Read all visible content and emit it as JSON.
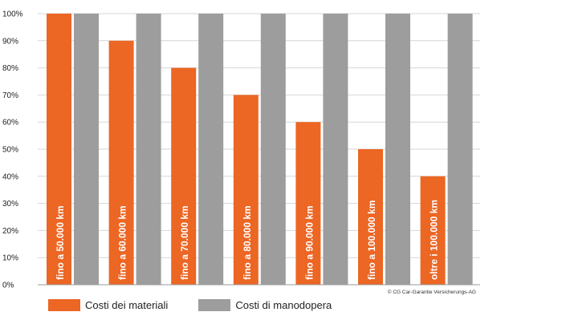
{
  "chart_data": {
    "type": "bar",
    "categories": [
      "fino a 50.000 km",
      "fino a 60.000 km",
      "fino a 70.000 km",
      "fino a 80.000 km",
      "fino a 90.000 km",
      "fino a 100.000 km",
      "oltre i 100.000 km"
    ],
    "series": [
      {
        "name": "Costi dei materiali",
        "color": "#ec6624",
        "values": [
          100,
          90,
          80,
          70,
          60,
          50,
          40
        ]
      },
      {
        "name": "Costi di manodopera",
        "color": "#9d9d9d",
        "values": [
          100,
          100,
          100,
          100,
          100,
          100,
          100
        ]
      }
    ],
    "yticks": [
      "0%",
      "10%",
      "20%",
      "30%",
      "40%",
      "50%",
      "60%",
      "70%",
      "80%",
      "90%",
      "100%"
    ],
    "ylim": [
      0,
      100
    ],
    "grid": true,
    "legend_position": "bottom-left",
    "credit": "© CG Car-Garantie Versicherungs-AG"
  }
}
